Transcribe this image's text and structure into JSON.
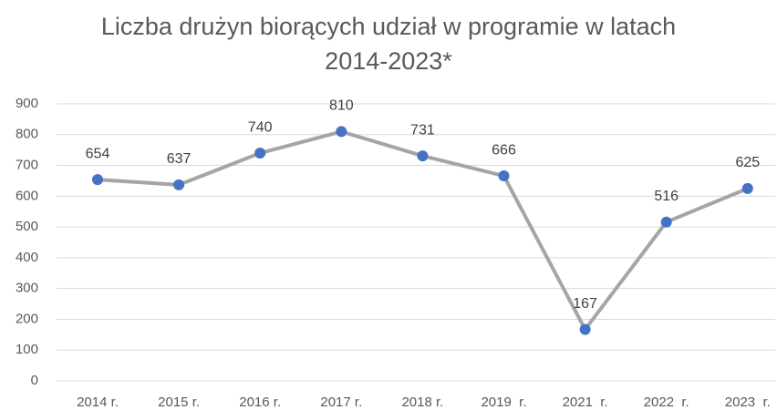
{
  "chart_data": {
    "type": "line",
    "title": "Liczba drużyn biorących udział w programie w latach 2014-2023*",
    "categories": [
      "2014 r.",
      "2015 r.",
      "2016 r.",
      "2017 r.",
      "2018 r.",
      "2019  r.",
      "2021  r.",
      "2022  r.",
      "2023  r."
    ],
    "series": [
      {
        "name": "Liczba drużyn",
        "color": "#a5a5a5",
        "marker_color": "#4472c4",
        "values": [
          654,
          637,
          740,
          810,
          731,
          666,
          167,
          516,
          625
        ]
      }
    ],
    "ylim": [
      0,
      900
    ],
    "yticks": [
      0,
      100,
      200,
      300,
      400,
      500,
      600,
      700,
      800,
      900
    ],
    "grid": true
  }
}
